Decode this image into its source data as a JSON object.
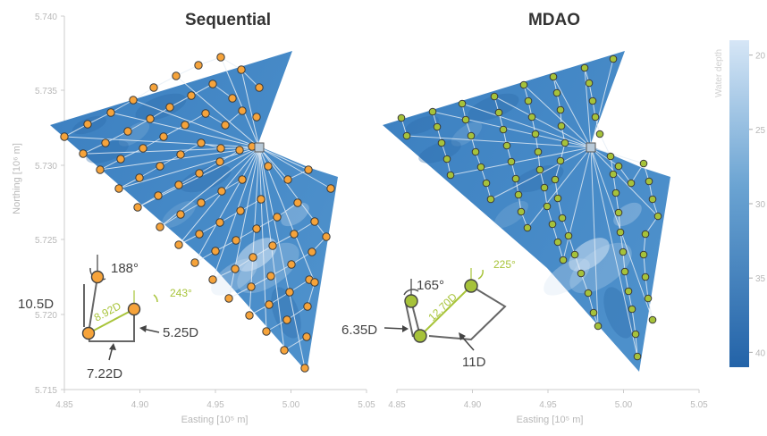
{
  "chart_data": [
    {
      "type": "scatter",
      "title": "Sequential",
      "xlabel": "Easting [10⁵ m]",
      "ylabel": "Northing [10⁶ m]",
      "xlim": [
        4.85,
        5.05
      ],
      "ylim": [
        5.715,
        5.74
      ],
      "xticks": [
        "4.85",
        "4.90",
        "4.95",
        "5.00",
        "5.05"
      ],
      "yticks": [
        "5.715",
        "5.720",
        "5.725",
        "5.730",
        "5.735",
        "5.740"
      ],
      "substation": [
        4.98,
        5.731
      ],
      "turbine_color": "#f6a33a",
      "annotations": {
        "angle_1": "188°",
        "angle_2": "243°",
        "dist_1": "10.5D",
        "dist_2": "8.92D",
        "dist_3": "5.25D",
        "dist_4": "7.22D"
      }
    },
    {
      "type": "scatter",
      "title": "MDAO",
      "xlabel": "Easting [10⁵ m]",
      "xlim": [
        4.85,
        5.05
      ],
      "ylim": [
        5.715,
        5.74
      ],
      "xticks": [
        "4.85",
        "4.90",
        "4.95",
        "5.00",
        "5.05"
      ],
      "substation": [
        4.98,
        5.731
      ],
      "turbine_color": "#a6c23a",
      "annotations": {
        "angle_1": "165°",
        "angle_2": "225°",
        "dist_1": "6.35D",
        "dist_2": "12.70D",
        "dist_3": "11D"
      }
    }
  ],
  "colorbar": {
    "label": "Water depth",
    "ticks": [
      "20",
      "25",
      "30",
      "35",
      "40"
    ],
    "range": [
      19,
      41
    ],
    "color_shallow": "#d4e4f4",
    "color_deep": "#2166ac"
  }
}
